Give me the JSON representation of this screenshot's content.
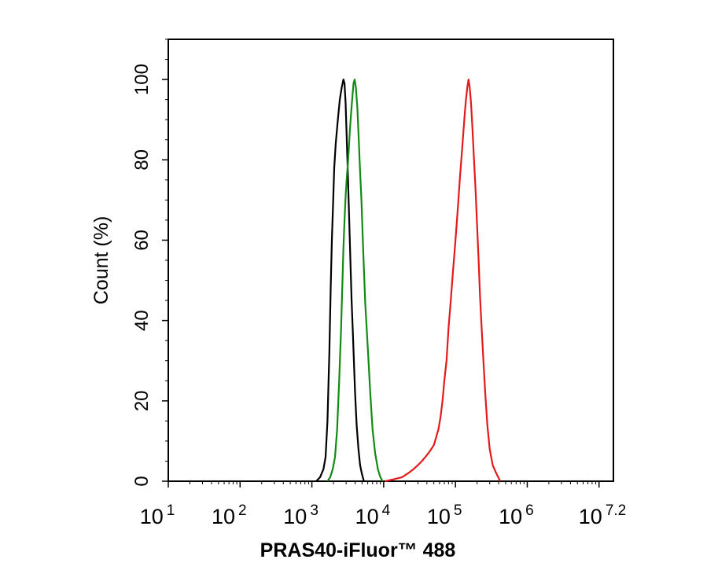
{
  "chart_data": {
    "type": "line",
    "xlabel": "PRAS40-iFluor™ 488",
    "ylabel": "Count  (%)",
    "x_scale": "log10",
    "xlim": [
      10,
      15848931.9
    ],
    "ylim": [
      0,
      110
    ],
    "x_tick_labels": [
      {
        "base": "10",
        "exp": "1"
      },
      {
        "base": "10",
        "exp": "2"
      },
      {
        "base": "10",
        "exp": "3"
      },
      {
        "base": "10",
        "exp": "4"
      },
      {
        "base": "10",
        "exp": "5"
      },
      {
        "base": "10",
        "exp": "6"
      },
      {
        "base": "10",
        "exp": "7.2"
      }
    ],
    "y_ticks": [
      0,
      20,
      40,
      60,
      80,
      100
    ],
    "grid": false,
    "legend": "none",
    "series": [
      {
        "color": "#000000",
        "points": [
          [
            1150,
            0
          ],
          [
            1300,
            1
          ],
          [
            1450,
            3
          ],
          [
            1550,
            6
          ],
          [
            1650,
            15
          ],
          [
            1750,
            32
          ],
          [
            1830,
            48
          ],
          [
            1900,
            60
          ],
          [
            1980,
            70
          ],
          [
            2050,
            78
          ],
          [
            2150,
            84
          ],
          [
            2300,
            90
          ],
          [
            2450,
            95
          ],
          [
            2600,
            98
          ],
          [
            2750,
            100
          ],
          [
            2850,
            99
          ],
          [
            2950,
            94
          ],
          [
            3050,
            86
          ],
          [
            3150,
            78
          ],
          [
            3250,
            70
          ],
          [
            3350,
            62
          ],
          [
            3450,
            54
          ],
          [
            3580,
            45
          ],
          [
            3700,
            38
          ],
          [
            3850,
            30
          ],
          [
            4000,
            22
          ],
          [
            4200,
            14
          ],
          [
            4450,
            8
          ],
          [
            4700,
            4
          ],
          [
            4950,
            2
          ],
          [
            5300,
            0
          ]
        ]
      },
      {
        "color": "#138a13",
        "points": [
          [
            1650,
            0
          ],
          [
            1800,
            1
          ],
          [
            1950,
            3
          ],
          [
            2100,
            6
          ],
          [
            2250,
            13
          ],
          [
            2400,
            25
          ],
          [
            2550,
            38
          ],
          [
            2650,
            48
          ],
          [
            2750,
            58
          ],
          [
            2850,
            65
          ],
          [
            2950,
            71
          ],
          [
            3050,
            75
          ],
          [
            3200,
            80
          ],
          [
            3400,
            88
          ],
          [
            3600,
            94
          ],
          [
            3800,
            99
          ],
          [
            3950,
            100
          ],
          [
            4100,
            98
          ],
          [
            4300,
            93
          ],
          [
            4500,
            85
          ],
          [
            4700,
            77
          ],
          [
            4900,
            70
          ],
          [
            5100,
            61
          ],
          [
            5300,
            53
          ],
          [
            5550,
            44
          ],
          [
            5800,
            38
          ],
          [
            6100,
            31
          ],
          [
            6500,
            22
          ],
          [
            7000,
            13
          ],
          [
            7600,
            7
          ],
          [
            8300,
            3
          ],
          [
            9000,
            1
          ],
          [
            9700,
            0
          ]
        ]
      },
      {
        "color": "#e31a1c",
        "points": [
          [
            10500,
            0
          ],
          [
            14000,
            0.5
          ],
          [
            18000,
            1
          ],
          [
            22000,
            2
          ],
          [
            26000,
            3
          ],
          [
            30000,
            4
          ],
          [
            34000,
            5
          ],
          [
            38000,
            6
          ],
          [
            42000,
            7
          ],
          [
            46000,
            8
          ],
          [
            50000,
            9
          ],
          [
            54000,
            11
          ],
          [
            58000,
            13
          ],
          [
            62000,
            16
          ],
          [
            66000,
            20
          ],
          [
            70000,
            25
          ],
          [
            75000,
            30
          ],
          [
            80000,
            38
          ],
          [
            86000,
            45
          ],
          [
            92000,
            52
          ],
          [
            98000,
            58
          ],
          [
            104000,
            64
          ],
          [
            110000,
            70
          ],
          [
            116000,
            76
          ],
          [
            122000,
            81
          ],
          [
            128000,
            86
          ],
          [
            134000,
            91
          ],
          [
            140000,
            95
          ],
          [
            146000,
            98
          ],
          [
            152000,
            100
          ],
          [
            158000,
            98
          ],
          [
            165000,
            94
          ],
          [
            172000,
            88
          ],
          [
            180000,
            81
          ],
          [
            190000,
            73
          ],
          [
            200000,
            64
          ],
          [
            210000,
            55
          ],
          [
            220000,
            46
          ],
          [
            232000,
            38
          ],
          [
            245000,
            30
          ],
          [
            260000,
            22
          ],
          [
            278000,
            14
          ],
          [
            300000,
            8
          ],
          [
            330000,
            4
          ],
          [
            370000,
            2
          ],
          [
            420000,
            0
          ]
        ]
      }
    ]
  }
}
